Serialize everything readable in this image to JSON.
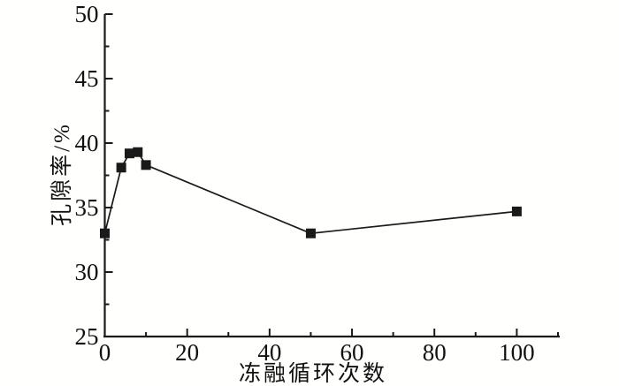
{
  "chart_data": {
    "type": "line",
    "title": "",
    "xlabel": "冻融循环次数",
    "ylabel": "孔隙率/%",
    "xlim": [
      0,
      110
    ],
    "ylim": [
      25,
      50
    ],
    "x_major_ticks": [
      0,
      20,
      40,
      60,
      80,
      100
    ],
    "x_minor_ticks": [
      10,
      30,
      50,
      70,
      90,
      110
    ],
    "y_major_ticks": [
      25,
      30,
      35,
      40,
      45,
      50
    ],
    "y_minor_ticks": [
      27.5,
      32.5,
      37.5,
      42.5,
      47.5
    ],
    "grid": "off",
    "legend": "none",
    "marker_shape": "filled-square",
    "series": [
      {
        "name": "porosity-vs-freeze-thaw-cycles",
        "x": [
          0,
          4,
          6,
          8,
          10,
          50,
          100
        ],
        "y": [
          33.0,
          38.1,
          39.2,
          39.3,
          38.3,
          33.0,
          34.7
        ]
      }
    ],
    "colors": {
      "line": "#1a1a1a",
      "marker": "#1a1a1a",
      "axis": "#1a1a1a",
      "background": "#fffffd"
    }
  }
}
